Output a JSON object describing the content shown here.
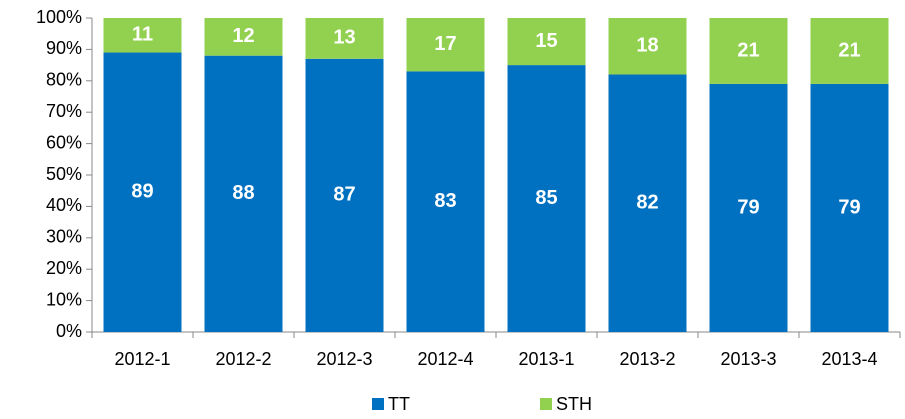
{
  "chart_data": {
    "type": "stacked_bar",
    "categories": [
      "2012-1",
      "2012-2",
      "2012-3",
      "2012-4",
      "2013-1",
      "2013-2",
      "2013-3",
      "2013-4"
    ],
    "series": [
      {
        "name": "TT",
        "color": "#0070c0",
        "values": [
          89,
          88,
          87,
          83,
          85,
          82,
          79,
          79
        ]
      },
      {
        "name": "STH",
        "color": "#92d050",
        "values": [
          11,
          12,
          13,
          17,
          15,
          18,
          21,
          21
        ]
      }
    ],
    "ylim": [
      0,
      100
    ],
    "yticks": [
      {
        "value": 0,
        "label": "0%"
      },
      {
        "value": 10,
        "label": "10%"
      },
      {
        "value": 20,
        "label": "20%"
      },
      {
        "value": 30,
        "label": "30%"
      },
      {
        "value": 40,
        "label": "40%"
      },
      {
        "value": 50,
        "label": "50%"
      },
      {
        "value": 60,
        "label": "60%"
      },
      {
        "value": 70,
        "label": "70%"
      },
      {
        "value": 80,
        "label": "80%"
      },
      {
        "value": 90,
        "label": "90%"
      },
      {
        "value": 100,
        "label": "100%"
      }
    ],
    "legend": "bottom"
  }
}
